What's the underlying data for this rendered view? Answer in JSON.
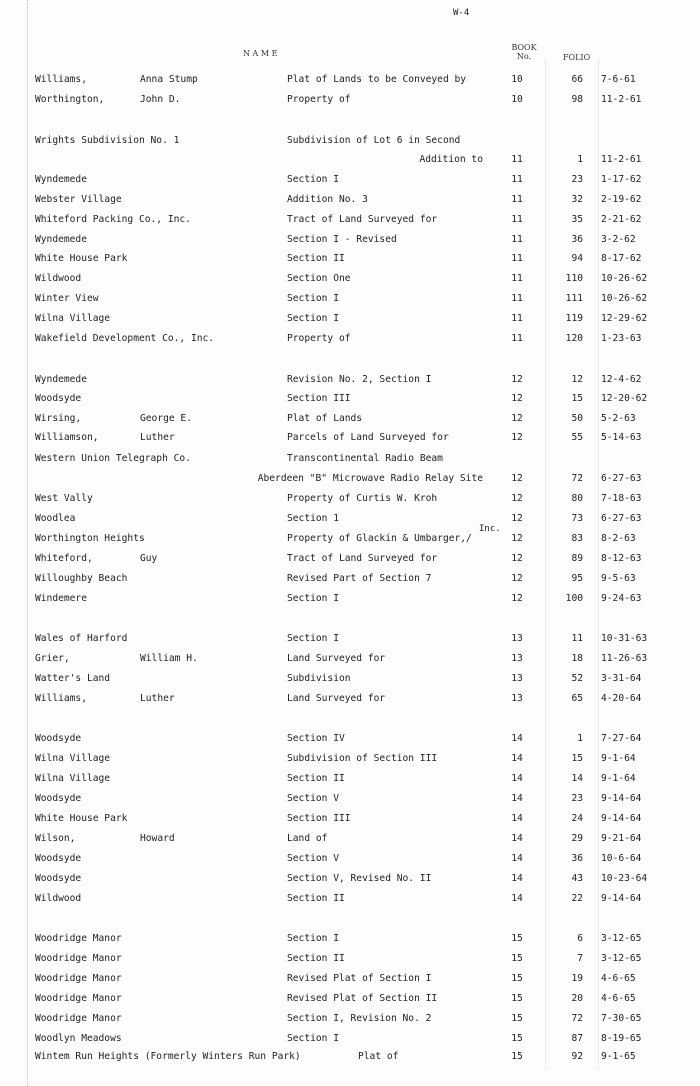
{
  "page_label": "W-4",
  "headers": {
    "name": "N A M E",
    "book_line1": "BOOK",
    "book_line2": "No.",
    "folio": "FOLIO"
  },
  "rows": [
    {
      "name": "Williams,",
      "given": "Anna Stump",
      "desc": "Plat of Lands to be Conveyed by",
      "book": "10",
      "folio": "66",
      "date": "7-6-61"
    },
    {
      "name": "Worthington,",
      "given": "John D.",
      "desc": "Property of",
      "book": "10",
      "folio": "98",
      "date": "11-2-61"
    },
    {
      "name": "Wrights Subdivision No. 1",
      "given": "",
      "desc": "Subdivision of Lot 6 in Second",
      "book": "",
      "folio": "",
      "date": ""
    },
    {
      "name": "",
      "given": "",
      "desc": "Addition to",
      "book": "11",
      "folio": "1",
      "date": "11-2-61"
    },
    {
      "name": "Wyndemede",
      "given": "",
      "desc": "Section I",
      "book": "11",
      "folio": "23",
      "date": "1-17-62"
    },
    {
      "name": "Webster Village",
      "given": "",
      "desc": "Addition No. 3",
      "book": "11",
      "folio": "32",
      "date": "2-19-62"
    },
    {
      "name": "Whiteford Packing Co., Inc.",
      "given": "",
      "desc": "Tract of Land Surveyed for",
      "book": "11",
      "folio": "35",
      "date": "2-21-62"
    },
    {
      "name": "Wyndemede",
      "given": "",
      "desc": "Section I - Revised",
      "book": "11",
      "folio": "36",
      "date": "3-2-62"
    },
    {
      "name": "White House Park",
      "given": "",
      "desc": "Section II",
      "book": "11",
      "folio": "94",
      "date": "8-17-62"
    },
    {
      "name": "Wildwood",
      "given": "",
      "desc": "Section One",
      "book": "11",
      "folio": "110",
      "date": "10-26-62"
    },
    {
      "name": "Winter View",
      "given": "",
      "desc": "Section I",
      "book": "11",
      "folio": "111",
      "date": "10-26-62"
    },
    {
      "name": "Wilna Village",
      "given": "",
      "desc": "Section I",
      "book": "11",
      "folio": "119",
      "date": "12-29-62"
    },
    {
      "name": "Wakefield Development Co., Inc.",
      "given": "",
      "desc": "Property of",
      "book": "11",
      "folio": "120",
      "date": "1-23-63"
    },
    {
      "name": "Wyndemede",
      "given": "",
      "desc": "Revision No. 2, Section I",
      "book": "12",
      "folio": "12",
      "date": "12-4-62"
    },
    {
      "name": "Woodsyde",
      "given": "",
      "desc": "Section III",
      "book": "12",
      "folio": "15",
      "date": "12-20-62"
    },
    {
      "name": "Wirsing,",
      "given": "George E.",
      "desc": "Plat of Lands",
      "book": "12",
      "folio": "50",
      "date": "5-2-63"
    },
    {
      "name": "Williamson,",
      "given": "Luther",
      "desc": "Parcels of Land Surveyed for",
      "book": "12",
      "folio": "55",
      "date": "5-14-63"
    },
    {
      "name": "Western Union Telegraph Co.",
      "given": "",
      "desc": "Transcontinental Radio Beam",
      "book": "",
      "folio": "",
      "date": ""
    },
    {
      "name": "",
      "given": "",
      "desc": "Aberdeen \"B\" Microwave Radio Relay Site",
      "book": "12",
      "folio": "72",
      "date": "6-27-63"
    },
    {
      "name": "West Vally",
      "given": "",
      "desc": "Property of Curtis W. Kroh",
      "book": "12",
      "folio": "80",
      "date": "7-18-63"
    },
    {
      "name": "Woodlea",
      "given": "",
      "desc": "Section 1",
      "book": "12",
      "folio": "73",
      "date": "6-27-63"
    },
    {
      "name": "Worthington Heights",
      "given": "",
      "desc": "Property of Glackin & Umbarger,/",
      "desc_note": "Inc.",
      "book": "12",
      "folio": "83",
      "date": "8-2-63"
    },
    {
      "name": "Whiteford,",
      "given": "Guy",
      "desc": "Tract of Land Surveyed for",
      "book": "12",
      "folio": "89",
      "date": "8-12-63"
    },
    {
      "name": "Willoughby Beach",
      "given": "",
      "desc": "Revised Part of Section 7",
      "book": "12",
      "folio": "95",
      "date": "9-5-63"
    },
    {
      "name": "Windemere",
      "given": "",
      "desc": "Section I",
      "book": "12",
      "folio": "100",
      "date": "9-24-63"
    },
    {
      "name": "Wales of Harford",
      "given": "",
      "desc": "Section I",
      "book": "13",
      "folio": "11",
      "date": "10-31-63"
    },
    {
      "name": "Grier,",
      "given": "William H.",
      "desc": "Land Surveyed for",
      "book": "13",
      "folio": "18",
      "date": "11-26-63"
    },
    {
      "name": "Watter's Land",
      "given": "",
      "desc": "Subdivision",
      "book": "13",
      "folio": "52",
      "date": "3-31-64"
    },
    {
      "name": "Williams,",
      "given": "Luther",
      "desc": "Land Surveyed for",
      "book": "13",
      "folio": "65",
      "date": "4-20-64"
    },
    {
      "name": "Woodsyde",
      "given": "",
      "desc": "Section IV",
      "book": "14",
      "folio": "1",
      "date": "7-27-64"
    },
    {
      "name": "Wilna Village",
      "given": "",
      "desc": "Subdivision of  Section III",
      "book": "14",
      "folio": "15",
      "date": "9-1-64"
    },
    {
      "name": "Wilna Village",
      "given": "",
      "desc": "Section II",
      "book": "14",
      "folio": "14",
      "date": "9-1-64"
    },
    {
      "name": "Woodsyde",
      "given": "",
      "desc": "Section V",
      "book": "14",
      "folio": "23",
      "date": "9-14-64"
    },
    {
      "name": "White House Park",
      "given": "",
      "desc": "Section III",
      "book": "14",
      "folio": "24",
      "date": "9-14-64"
    },
    {
      "name": "Wilson,",
      "given": "Howard",
      "desc": "Land of",
      "book": "14",
      "folio": "29",
      "date": "9-21-64"
    },
    {
      "name": "Woodsyde",
      "given": "",
      "desc": "Section V",
      "book": "14",
      "folio": "36",
      "date": "10-6-64"
    },
    {
      "name": "Woodsyde",
      "given": "",
      "desc": "Section V, Revised No. II",
      "book": "14",
      "folio": "43",
      "date": "10-23-64"
    },
    {
      "name": "Wildwood",
      "given": "",
      "desc": "Section II",
      "book": "14",
      "folio": "22",
      "date": "9-14-64"
    },
    {
      "name": "Woodridge Manor",
      "given": "",
      "desc": "Section I",
      "book": "15",
      "folio": "6",
      "date": "3-12-65"
    },
    {
      "name": "Woodridge Manor",
      "given": "",
      "desc": "Section II",
      "book": "15",
      "folio": "7",
      "date": "3-12-65"
    },
    {
      "name": "Woodridge Manor",
      "given": "",
      "desc": "Revised Plat of Section I",
      "book": "15",
      "folio": "19",
      "date": "4-6-65"
    },
    {
      "name": "Woodridge Manor",
      "given": "",
      "desc": "Revised Plat of Section II",
      "book": "15",
      "folio": "20",
      "date": "4-6-65"
    },
    {
      "name": "Woodridge Manor",
      "given": "",
      "desc": "Section I, Revision No. 2",
      "book": "15",
      "folio": "72",
      "date": "7-30-65"
    },
    {
      "name": "Woodlyn Meadows",
      "given": "",
      "desc": "Section I",
      "book": "15",
      "folio": "87",
      "date": "8-19-65"
    },
    {
      "name": "Wintem Run Heights (Formerly Winters Run Park)",
      "given": "",
      "desc": "Plat of",
      "book": "15",
      "folio": "92",
      "date": "9-1-65"
    }
  ]
}
